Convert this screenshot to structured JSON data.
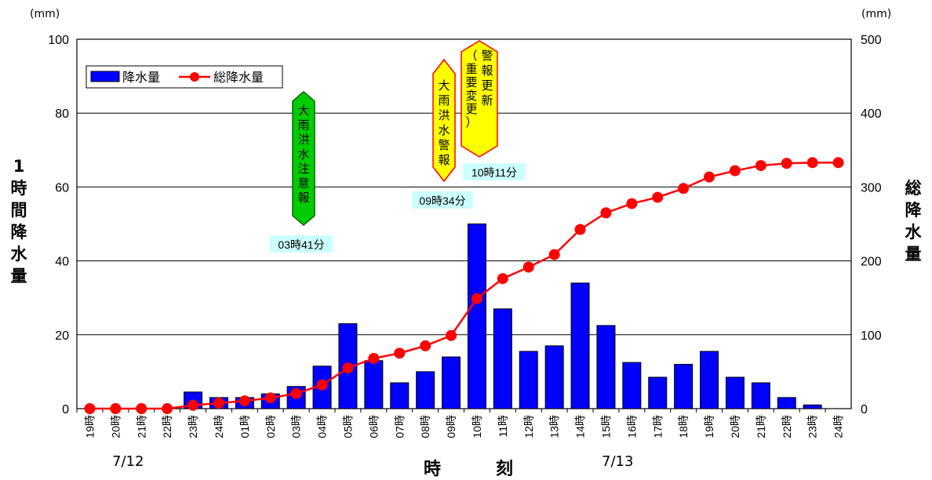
{
  "chart_data": {
    "type": "bar",
    "title": "",
    "y_left_label": "1時間降水量",
    "y_right_label": "総降水量",
    "y_left_unit": "(mm)",
    "y_right_unit": "(mm)",
    "x_label": "時　刻",
    "ylim_left": [
      0,
      100
    ],
    "ylim_right": [
      0,
      500
    ],
    "y_left_ticks": [
      0,
      20,
      40,
      60,
      80,
      100
    ],
    "y_right_ticks": [
      0,
      100,
      200,
      300,
      400,
      500
    ],
    "grid": true,
    "legend_position": "top-left",
    "categories": [
      "19時",
      "20時",
      "21時",
      "22時",
      "23時",
      "24時",
      "01時",
      "02時",
      "03時",
      "04時",
      "05時",
      "06時",
      "07時",
      "08時",
      "09時",
      "10時",
      "11時",
      "12時",
      "13時",
      "14時",
      "15時",
      "16時",
      "17時",
      "18時",
      "19時",
      "20時",
      "21時",
      "22時",
      "23時",
      "24時"
    ],
    "date_labels": [
      {
        "text": "7/12",
        "category_index": 1
      },
      {
        "text": "7/13",
        "category_index": 20
      }
    ],
    "series": [
      {
        "name": "降水量",
        "type": "bar",
        "axis": "left",
        "color": "#0000ff",
        "values": [
          0,
          0,
          0,
          0,
          4.5,
          3,
          3,
          4,
          6,
          11.5,
          23,
          13,
          7,
          10,
          14,
          50,
          27,
          15.5,
          17,
          34,
          22.5,
          12.5,
          8.5,
          12,
          15.5,
          8.5,
          7,
          3,
          1,
          0
        ]
      },
      {
        "name": "総降水量",
        "type": "line",
        "axis": "right",
        "color": "#ff0000",
        "values": [
          0,
          0,
          0,
          0,
          4.5,
          7.5,
          10.5,
          14.5,
          20.5,
          32,
          55,
          68,
          75,
          85,
          99,
          149,
          176,
          191.5,
          208.5,
          242.5,
          265,
          277.5,
          286,
          298,
          313.5,
          322,
          329,
          332,
          333,
          333
        ]
      }
    ],
    "annotations": [
      {
        "label": "大雨洪水注意報",
        "time": "03時41分",
        "color": "#00cc00",
        "border": "#006600",
        "category_index": 8.7
      },
      {
        "label": "大雨洪水警報",
        "time": "09時34分",
        "color": "#ffff00",
        "border": "#ff0000",
        "category_index": 14.6
      },
      {
        "label": "警報更新（重要変更）",
        "time": "10時11分",
        "color": "#ffff00",
        "border": "#ff0000",
        "category_index": 15.2
      }
    ]
  }
}
